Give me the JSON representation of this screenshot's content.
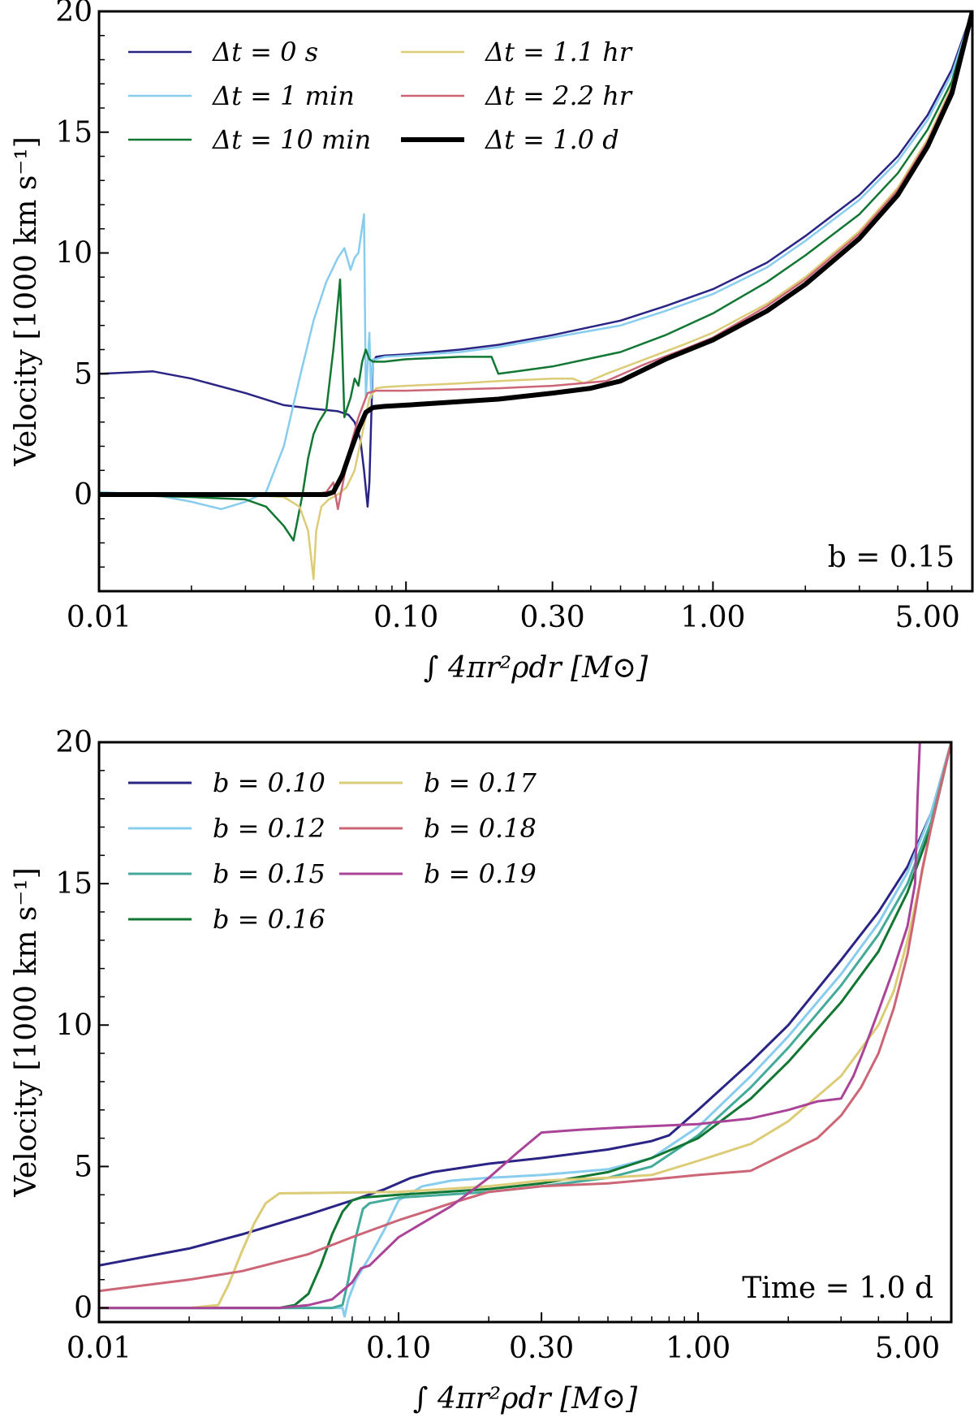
{
  "chart_data": [
    {
      "type": "line",
      "xscale": "log",
      "xlim": [
        0.01,
        7.0
      ],
      "ylim": [
        -4,
        20
      ],
      "xticks": [
        0.01,
        0.1,
        0.3,
        1.0,
        5.0
      ],
      "xtick_labels": [
        "0.01",
        "0.10",
        "0.30",
        "1.00",
        "5.00"
      ],
      "yticks": [
        0,
        5,
        10,
        15,
        20
      ],
      "ytick_labels": [
        "0",
        "5",
        "10",
        "15",
        "20"
      ],
      "xlabel": "∫ 4πr²ρdr [M⊙]",
      "ylabel": "Velocity [1000 km s⁻¹]",
      "annotation": "b = 0.15",
      "legend": "top-left",
      "series": [
        {
          "name": "Δt = 0 s",
          "color": "#2a2585",
          "width": 2.5,
          "x": [
            0.01,
            0.015,
            0.02,
            0.03,
            0.04,
            0.05,
            0.06,
            0.065,
            0.068,
            0.071,
            0.073,
            0.075,
            0.076,
            0.078,
            0.08,
            0.085,
            0.1,
            0.15,
            0.2,
            0.3,
            0.5,
            0.7,
            1.0,
            1.5,
            2.0,
            3.0,
            4.0,
            5.0,
            6.0,
            7.0
          ],
          "y": [
            5.0,
            5.1,
            4.8,
            4.2,
            3.7,
            3.55,
            3.45,
            3.3,
            3.0,
            2.3,
            1.0,
            -0.5,
            0.5,
            5.5,
            5.7,
            5.75,
            5.8,
            6.0,
            6.2,
            6.6,
            7.2,
            7.8,
            8.5,
            9.6,
            10.7,
            12.4,
            14.0,
            15.7,
            17.6,
            20.0
          ]
        },
        {
          "name": "Δt = 1 min",
          "color": "#88ccee",
          "width": 2.5,
          "x": [
            0.01,
            0.015,
            0.02,
            0.025,
            0.03,
            0.035,
            0.04,
            0.045,
            0.05,
            0.055,
            0.06,
            0.063,
            0.066,
            0.068,
            0.07,
            0.073,
            0.074,
            0.076,
            0.077,
            0.078,
            0.08,
            0.085,
            0.1,
            0.15,
            0.2,
            0.3,
            0.5,
            0.7,
            1.0,
            1.5,
            2.0,
            3.0,
            4.0,
            5.0,
            6.0,
            7.0
          ],
          "y": [
            0.1,
            0.0,
            -0.3,
            -0.6,
            -0.3,
            0.1,
            2.0,
            4.8,
            7.2,
            8.8,
            9.8,
            10.2,
            9.3,
            9.8,
            10.0,
            11.6,
            4.0,
            6.7,
            4.0,
            5.6,
            5.6,
            5.7,
            5.75,
            5.9,
            6.1,
            6.5,
            7.0,
            7.6,
            8.3,
            9.4,
            10.5,
            12.2,
            13.8,
            15.5,
            17.4,
            20.0
          ]
        },
        {
          "name": "Δt = 10 min",
          "color": "#117733",
          "width": 2.5,
          "x": [
            0.01,
            0.02,
            0.03,
            0.035,
            0.04,
            0.043,
            0.046,
            0.048,
            0.05,
            0.052,
            0.055,
            0.058,
            0.061,
            0.063,
            0.064,
            0.066,
            0.068,
            0.07,
            0.072,
            0.074,
            0.076,
            0.078,
            0.085,
            0.1,
            0.15,
            0.19,
            0.2,
            0.3,
            0.5,
            0.7,
            1.0,
            1.5,
            2.0,
            3.0,
            4.0,
            5.0,
            6.0,
            7.0
          ],
          "y": [
            0.0,
            -0.1,
            -0.2,
            -0.5,
            -1.3,
            -1.9,
            0.0,
            1.5,
            2.5,
            3.0,
            3.5,
            6.0,
            8.9,
            3.2,
            3.5,
            4.0,
            4.8,
            4.5,
            5.5,
            6.0,
            5.6,
            5.5,
            5.5,
            5.6,
            5.7,
            5.7,
            5.0,
            5.3,
            5.9,
            6.6,
            7.5,
            8.8,
            9.9,
            11.6,
            13.3,
            15.1,
            17.1,
            20.0
          ]
        },
        {
          "name": "Δt = 1.1 hr",
          "color": "#ddcc77",
          "width": 2.5,
          "x": [
            0.01,
            0.03,
            0.04,
            0.045,
            0.048,
            0.05,
            0.051,
            0.053,
            0.056,
            0.06,
            0.064,
            0.068,
            0.072,
            0.076,
            0.08,
            0.085,
            0.1,
            0.15,
            0.2,
            0.3,
            0.35,
            0.38,
            0.45,
            0.6,
            0.8,
            1.0,
            1.5,
            2.0,
            3.0,
            4.0,
            5.0,
            6.0,
            7.0
          ],
          "y": [
            0.0,
            0.0,
            -0.1,
            -0.5,
            -1.5,
            -3.5,
            -1.5,
            -0.5,
            -0.2,
            0.0,
            0.3,
            1.0,
            2.5,
            4.0,
            4.4,
            4.45,
            4.5,
            4.6,
            4.7,
            4.8,
            4.8,
            4.6,
            5.0,
            5.6,
            6.2,
            6.7,
            7.9,
            9.0,
            10.9,
            12.7,
            14.7,
            16.9,
            20.0
          ]
        },
        {
          "name": "Δt = 2.2 hr",
          "color": "#cc6677",
          "width": 2.5,
          "x": [
            0.01,
            0.05,
            0.055,
            0.058,
            0.06,
            0.063,
            0.066,
            0.07,
            0.075,
            0.08,
            0.1,
            0.2,
            0.3,
            0.45,
            0.6,
            0.8,
            1.0,
            1.5,
            2.0,
            3.0,
            4.0,
            5.0,
            6.0,
            7.0
          ],
          "y": [
            0.0,
            0.0,
            0.1,
            0.5,
            -0.6,
            0.8,
            2.0,
            3.2,
            4.2,
            4.3,
            4.3,
            4.4,
            4.5,
            4.7,
            5.4,
            6.0,
            6.5,
            7.8,
            8.9,
            10.8,
            12.6,
            14.6,
            16.8,
            20.0
          ]
        },
        {
          "name": "Δt = 1.0 d",
          "color": "#000000",
          "width": 6,
          "x": [
            0.01,
            0.055,
            0.058,
            0.062,
            0.066,
            0.07,
            0.074,
            0.078,
            0.085,
            0.1,
            0.2,
            0.3,
            0.4,
            0.5,
            0.7,
            1.0,
            1.5,
            2.0,
            3.0,
            4.0,
            5.0,
            6.0,
            7.0
          ],
          "y": [
            0.0,
            0.0,
            0.1,
            0.8,
            1.8,
            2.7,
            3.4,
            3.6,
            3.65,
            3.7,
            3.95,
            4.2,
            4.4,
            4.7,
            5.6,
            6.4,
            7.6,
            8.7,
            10.6,
            12.4,
            14.4,
            16.6,
            20.0
          ]
        }
      ]
    },
    {
      "type": "line",
      "xscale": "log",
      "xlim": [
        0.01,
        7.0
      ],
      "ylim": [
        -0.5,
        20
      ],
      "xticks": [
        0.01,
        0.1,
        0.3,
        1.0,
        5.0
      ],
      "xtick_labels": [
        "0.01",
        "0.10",
        "0.30",
        "1.00",
        "5.00"
      ],
      "yticks": [
        0,
        5,
        10,
        15,
        20
      ],
      "ytick_labels": [
        "0",
        "5",
        "10",
        "15",
        "20"
      ],
      "xlabel": "∫ 4πr²ρdr [M⊙]",
      "ylabel": "Velocity [1000 km s⁻¹]",
      "annotation": "Time = 1.0 d",
      "legend": "top-left",
      "series": [
        {
          "name": "b = 0.10",
          "color": "#2a2585",
          "width": 3,
          "x": [
            0.01,
            0.02,
            0.03,
            0.05,
            0.07,
            0.09,
            0.11,
            0.13,
            0.2,
            0.3,
            0.5,
            0.7,
            0.8,
            1.0,
            1.5,
            2.0,
            3.0,
            4.0,
            5.0,
            6.0,
            7.0
          ],
          "y": [
            1.5,
            2.1,
            2.6,
            3.3,
            3.8,
            4.2,
            4.6,
            4.8,
            5.1,
            5.3,
            5.6,
            5.9,
            6.1,
            7.0,
            8.7,
            10.0,
            12.3,
            14.0,
            15.6,
            17.5,
            20.0
          ]
        },
        {
          "name": "b = 0.12",
          "color": "#88ccee",
          "width": 3,
          "x": [
            0.01,
            0.04,
            0.06,
            0.065,
            0.066,
            0.068,
            0.072,
            0.08,
            0.09,
            0.1,
            0.12,
            0.15,
            0.2,
            0.3,
            0.5,
            0.7,
            1.0,
            1.5,
            2.0,
            3.0,
            4.0,
            5.0,
            6.0,
            7.0
          ],
          "y": [
            0.0,
            0.0,
            0.0,
            0.0,
            -0.3,
            0.3,
            1.0,
            1.8,
            2.8,
            3.8,
            4.3,
            4.5,
            4.6,
            4.7,
            4.9,
            5.3,
            6.4,
            8.2,
            9.6,
            11.8,
            13.6,
            15.4,
            17.5,
            20.0
          ]
        },
        {
          "name": "b = 0.15",
          "color": "#44aa99",
          "width": 3,
          "x": [
            0.01,
            0.04,
            0.06,
            0.065,
            0.068,
            0.072,
            0.076,
            0.08,
            0.1,
            0.2,
            0.3,
            0.5,
            0.7,
            1.0,
            1.5,
            2.0,
            3.0,
            4.0,
            5.0,
            6.0,
            7.0
          ],
          "y": [
            0.0,
            0.0,
            0.0,
            0.1,
            1.0,
            2.5,
            3.5,
            3.7,
            3.9,
            4.1,
            4.3,
            4.6,
            5.0,
            6.1,
            7.8,
            9.2,
            11.4,
            13.2,
            15.0,
            17.2,
            20.0
          ]
        },
        {
          "name": "b = 0.16",
          "color": "#117733",
          "width": 3,
          "x": [
            0.01,
            0.04,
            0.045,
            0.05,
            0.055,
            0.06,
            0.065,
            0.07,
            0.075,
            0.1,
            0.2,
            0.3,
            0.5,
            0.7,
            1.0,
            1.5,
            2.0,
            3.0,
            4.0,
            5.0,
            6.0,
            7.0
          ],
          "y": [
            0.0,
            0.0,
            0.1,
            0.5,
            1.5,
            2.6,
            3.4,
            3.8,
            3.9,
            4.0,
            4.2,
            4.4,
            4.8,
            5.3,
            6.0,
            7.4,
            8.7,
            10.8,
            12.6,
            14.7,
            17.0,
            20.0
          ]
        },
        {
          "name": "b = 0.17",
          "color": "#ddcc77",
          "width": 3,
          "x": [
            0.01,
            0.02,
            0.025,
            0.027,
            0.03,
            0.033,
            0.036,
            0.04,
            0.1,
            0.2,
            0.3,
            0.5,
            0.7,
            1.0,
            1.5,
            2.0,
            3.0,
            4.0,
            4.5,
            5.0,
            5.5,
            6.0,
            6.5,
            7.0
          ],
          "y": [
            0.0,
            0.0,
            0.1,
            0.8,
            2.0,
            3.0,
            3.7,
            4.05,
            4.1,
            4.3,
            4.5,
            4.6,
            4.7,
            5.2,
            5.8,
            6.6,
            8.2,
            10.0,
            11.2,
            13.0,
            15.0,
            17.0,
            18.6,
            20.0
          ]
        },
        {
          "name": "b = 0.18",
          "color": "#cc6677",
          "width": 3,
          "x": [
            0.01,
            0.02,
            0.03,
            0.05,
            0.07,
            0.1,
            0.15,
            0.2,
            0.3,
            0.5,
            0.8,
            1.0,
            1.5,
            2.0,
            2.5,
            3.0,
            3.5,
            4.0,
            4.5,
            5.0,
            5.3,
            5.6,
            6.0,
            6.5,
            7.0
          ],
          "y": [
            0.6,
            1.0,
            1.3,
            1.9,
            2.5,
            3.1,
            3.7,
            4.1,
            4.3,
            4.4,
            4.6,
            4.7,
            4.85,
            5.5,
            6.0,
            6.8,
            7.8,
            9.0,
            10.6,
            12.5,
            14.0,
            15.5,
            17.0,
            18.6,
            20.0
          ]
        },
        {
          "name": "b = 0.19",
          "color": "#aa4499",
          "width": 3,
          "x": [
            0.01,
            0.04,
            0.05,
            0.06,
            0.07,
            0.075,
            0.08,
            0.1,
            0.15,
            0.2,
            0.25,
            0.3,
            0.4,
            0.6,
            1.0,
            1.5,
            2.0,
            2.5,
            3.0,
            3.3,
            3.6,
            4.0,
            4.5,
            5.0,
            5.3,
            5.4,
            5.5
          ],
          "y": [
            0.0,
            0.0,
            0.1,
            0.3,
            0.9,
            1.4,
            1.5,
            2.5,
            3.6,
            4.6,
            5.5,
            6.2,
            6.3,
            6.4,
            6.5,
            6.7,
            7.0,
            7.3,
            7.4,
            8.2,
            9.2,
            10.5,
            12.0,
            13.5,
            15.0,
            18.0,
            20.0
          ]
        }
      ]
    }
  ]
}
